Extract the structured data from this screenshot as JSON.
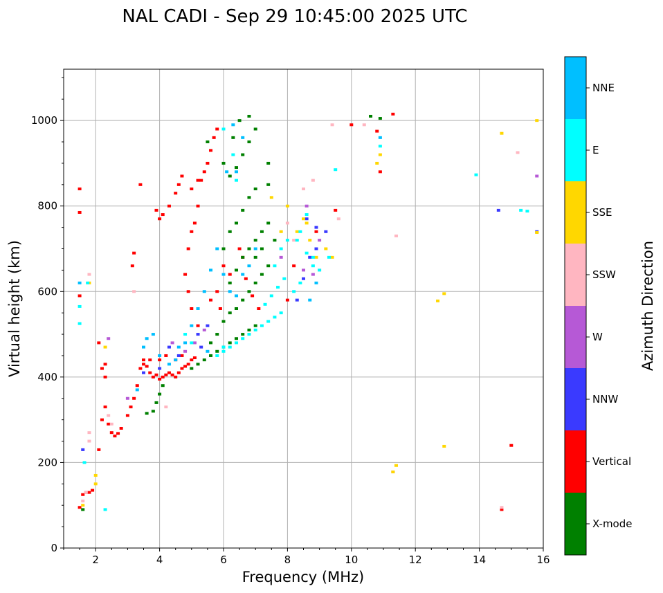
{
  "chart_data": {
    "type": "scatter",
    "title": "NAL CADI - Sep 29 10:45:00 2025 UTC",
    "xlabel": "Frequency (MHz)",
    "ylabel": "Virtual height (km)",
    "xlim": [
      1,
      16
    ],
    "ylim": [
      0,
      1120
    ],
    "xticks": [
      2,
      4,
      6,
      8,
      10,
      12,
      14,
      16
    ],
    "yticks": [
      0,
      200,
      400,
      600,
      800,
      1000
    ],
    "grid": true,
    "colorbar": {
      "label": "Azimuth Direction",
      "categories": [
        {
          "name": "X-mode",
          "color": "#008000"
        },
        {
          "name": "Vertical",
          "color": "#ff0000"
        },
        {
          "name": "NNW",
          "color": "#3a3aff"
        },
        {
          "name": "W",
          "color": "#b659d6"
        },
        {
          "name": "SSW",
          "color": "#ffb6c1"
        },
        {
          "name": "SSE",
          "color": "#ffd700"
        },
        {
          "name": "E",
          "color": "#00ffff"
        },
        {
          "name": "NNE",
          "color": "#00bfff"
        }
      ]
    },
    "series": [
      {
        "name": "Vertical",
        "points": [
          [
            1.5,
            95
          ],
          [
            1.6,
            125
          ],
          [
            1.7,
            130
          ],
          [
            1.8,
            130
          ],
          [
            1.9,
            135
          ],
          [
            2.1,
            230
          ],
          [
            2.2,
            300
          ],
          [
            2.3,
            330
          ],
          [
            2.4,
            290
          ],
          [
            2.5,
            270
          ],
          [
            2.6,
            262
          ],
          [
            2.7,
            268
          ],
          [
            2.8,
            280
          ],
          [
            3.0,
            310
          ],
          [
            3.1,
            330
          ],
          [
            3.2,
            350
          ],
          [
            3.3,
            380
          ],
          [
            3.4,
            420
          ],
          [
            3.5,
            430
          ],
          [
            3.6,
            425
          ],
          [
            3.7,
            410
          ],
          [
            3.8,
            400
          ],
          [
            3.9,
            405
          ],
          [
            4.0,
            395
          ],
          [
            4.1,
            400
          ],
          [
            4.2,
            405
          ],
          [
            4.3,
            410
          ],
          [
            4.4,
            405
          ],
          [
            4.5,
            400
          ],
          [
            4.6,
            410
          ],
          [
            4.7,
            420
          ],
          [
            4.8,
            425
          ],
          [
            4.9,
            430
          ],
          [
            5.0,
            440
          ],
          [
            5.1,
            445
          ],
          [
            3.5,
            440
          ],
          [
            3.7,
            440
          ],
          [
            4.0,
            440
          ],
          [
            4.2,
            450
          ],
          [
            4.5,
            440
          ],
          [
            4.7,
            450
          ],
          [
            5.2,
            520
          ],
          [
            5.0,
            560
          ],
          [
            4.9,
            600
          ],
          [
            4.8,
            640
          ],
          [
            4.9,
            700
          ],
          [
            5.0,
            740
          ],
          [
            5.1,
            760
          ],
          [
            5.2,
            800
          ],
          [
            5.3,
            860
          ],
          [
            5.4,
            880
          ],
          [
            5.5,
            900
          ],
          [
            5.6,
            930
          ],
          [
            5.7,
            960
          ],
          [
            5.8,
            980
          ],
          [
            4.0,
            770
          ],
          [
            4.1,
            780
          ],
          [
            4.3,
            800
          ],
          [
            4.5,
            830
          ],
          [
            4.6,
            850
          ],
          [
            4.7,
            870
          ],
          [
            5.0,
            840
          ],
          [
            5.2,
            860
          ],
          [
            3.4,
            850
          ],
          [
            3.9,
            790
          ],
          [
            3.2,
            690
          ],
          [
            3.15,
            660
          ],
          [
            1.5,
            590
          ],
          [
            1.5,
            840
          ],
          [
            1.5,
            785
          ],
          [
            2.3,
            430
          ],
          [
            2.3,
            400
          ],
          [
            2.2,
            420
          ],
          [
            2.1,
            480
          ],
          [
            6.5,
            700
          ],
          [
            6.6,
            680
          ],
          [
            6.0,
            660
          ],
          [
            6.2,
            640
          ],
          [
            5.8,
            600
          ],
          [
            5.6,
            580
          ],
          [
            5.9,
            560
          ],
          [
            6.7,
            630
          ],
          [
            6.9,
            590
          ],
          [
            7.1,
            560
          ],
          [
            8.0,
            580
          ],
          [
            8.2,
            660
          ],
          [
            8.9,
            740
          ],
          [
            9.5,
            790
          ],
          [
            10.9,
            880
          ],
          [
            10.8,
            975
          ],
          [
            10.0,
            990
          ],
          [
            11.3,
            1015
          ],
          [
            15.0,
            240
          ],
          [
            14.7,
            90
          ]
        ]
      },
      {
        "name": "X-mode",
        "points": [
          [
            1.6,
            90
          ],
          [
            3.6,
            315
          ],
          [
            3.8,
            320
          ],
          [
            3.9,
            340
          ],
          [
            4.0,
            360
          ],
          [
            4.1,
            380
          ],
          [
            5.0,
            420
          ],
          [
            5.2,
            430
          ],
          [
            5.4,
            440
          ],
          [
            5.6,
            450
          ],
          [
            5.8,
            460
          ],
          [
            6.0,
            470
          ],
          [
            6.2,
            480
          ],
          [
            6.4,
            490
          ],
          [
            6.6,
            500
          ],
          [
            6.8,
            510
          ],
          [
            7.0,
            520
          ],
          [
            5.6,
            480
          ],
          [
            5.8,
            500
          ],
          [
            6.0,
            530
          ],
          [
            6.2,
            550
          ],
          [
            6.4,
            560
          ],
          [
            6.6,
            580
          ],
          [
            6.8,
            600
          ],
          [
            7.0,
            620
          ],
          [
            7.2,
            640
          ],
          [
            6.2,
            620
          ],
          [
            6.4,
            650
          ],
          [
            6.6,
            680
          ],
          [
            6.8,
            700
          ],
          [
            7.0,
            720
          ],
          [
            7.2,
            740
          ],
          [
            7.4,
            760
          ],
          [
            6.0,
            700
          ],
          [
            6.2,
            740
          ],
          [
            6.4,
            760
          ],
          [
            6.6,
            790
          ],
          [
            6.8,
            820
          ],
          [
            7.0,
            840
          ],
          [
            7.4,
            850
          ],
          [
            6.2,
            870
          ],
          [
            6.4,
            890
          ],
          [
            6.6,
            920
          ],
          [
            6.8,
            950
          ],
          [
            7.0,
            980
          ],
          [
            7.4,
            900
          ],
          [
            6.5,
            1000
          ],
          [
            6.8,
            1010
          ],
          [
            5.5,
            950
          ],
          [
            6.0,
            900
          ],
          [
            6.3,
            960
          ],
          [
            7.2,
            700
          ],
          [
            7.0,
            680
          ],
          [
            7.4,
            660
          ],
          [
            7.6,
            720
          ],
          [
            10.6,
            1010
          ],
          [
            10.9,
            1005
          ]
        ]
      },
      {
        "name": "NNW",
        "points": [
          [
            1.6,
            230
          ],
          [
            3.5,
            410
          ],
          [
            4.0,
            420
          ],
          [
            4.3,
            470
          ],
          [
            4.6,
            450
          ],
          [
            5.2,
            500
          ],
          [
            5.5,
            520
          ],
          [
            5.3,
            470
          ],
          [
            8.5,
            630
          ],
          [
            8.7,
            680
          ],
          [
            8.9,
            700
          ],
          [
            8.6,
            770
          ],
          [
            8.9,
            750
          ],
          [
            9.2,
            740
          ],
          [
            8.3,
            580
          ],
          [
            14.6,
            790
          ],
          [
            15.8,
            740
          ]
        ]
      },
      {
        "name": "W",
        "points": [
          [
            2.4,
            490
          ],
          [
            3.0,
            350
          ],
          [
            4.4,
            480
          ],
          [
            4.8,
            460
          ],
          [
            5.1,
            480
          ],
          [
            5.4,
            510
          ],
          [
            8.5,
            650
          ],
          [
            8.8,
            640
          ],
          [
            9.0,
            720
          ],
          [
            11.3,
            178
          ],
          [
            15.8,
            870
          ],
          [
            8.6,
            800
          ],
          [
            7.8,
            680
          ]
        ]
      },
      {
        "name": "SSW",
        "points": [
          [
            1.6,
            110
          ],
          [
            1.7,
            130
          ],
          [
            1.8,
            250
          ],
          [
            1.8,
            640
          ],
          [
            1.8,
            270
          ],
          [
            2.4,
            310
          ],
          [
            2.5,
            290
          ],
          [
            3.2,
            600
          ],
          [
            4.2,
            330
          ],
          [
            8.5,
            840
          ],
          [
            8.8,
            860
          ],
          [
            9.0,
            650
          ],
          [
            9.6,
            770
          ],
          [
            10.4,
            990
          ],
          [
            14.7,
            95
          ],
          [
            15.2,
            925
          ],
          [
            8.2,
            720
          ],
          [
            8.0,
            760
          ],
          [
            9.4,
            990
          ],
          [
            11.4,
            730
          ]
        ]
      },
      {
        "name": "SSE",
        "points": [
          [
            1.6,
            100
          ],
          [
            1.8,
            620
          ],
          [
            2.0,
            170
          ],
          [
            2.0,
            150
          ],
          [
            2.3,
            470
          ],
          [
            7.8,
            740
          ],
          [
            8.0,
            800
          ],
          [
            8.3,
            740
          ],
          [
            8.6,
            760
          ],
          [
            8.7,
            720
          ],
          [
            8.9,
            680
          ],
          [
            9.2,
            700
          ],
          [
            10.9,
            920
          ],
          [
            10.8,
            900
          ],
          [
            12.7,
            578
          ],
          [
            12.9,
            595
          ],
          [
            12.9,
            238
          ],
          [
            11.4,
            193
          ],
          [
            11.3,
            178
          ],
          [
            14.7,
            970
          ],
          [
            15.8,
            1000
          ],
          [
            15.8,
            738
          ],
          [
            9.4,
            680
          ],
          [
            8.5,
            770
          ],
          [
            7.5,
            820
          ]
        ]
      },
      {
        "name": "E",
        "points": [
          [
            1.5,
            525
          ],
          [
            1.5,
            565
          ],
          [
            1.75,
            620
          ],
          [
            1.65,
            200
          ],
          [
            2.3,
            90
          ],
          [
            4.8,
            500
          ],
          [
            5.0,
            480
          ],
          [
            5.8,
            450
          ],
          [
            6.0,
            460
          ],
          [
            6.2,
            470
          ],
          [
            6.6,
            490
          ],
          [
            6.8,
            500
          ],
          [
            7.0,
            510
          ],
          [
            7.2,
            520
          ],
          [
            7.4,
            530
          ],
          [
            7.6,
            540
          ],
          [
            7.8,
            550
          ],
          [
            7.3,
            570
          ],
          [
            7.5,
            590
          ],
          [
            7.7,
            610
          ],
          [
            7.9,
            630
          ],
          [
            7.6,
            660
          ],
          [
            7.8,
            700
          ],
          [
            8.0,
            720
          ],
          [
            8.2,
            600
          ],
          [
            8.4,
            620
          ],
          [
            8.6,
            690
          ],
          [
            8.8,
            680
          ],
          [
            8.3,
            720
          ],
          [
            8.4,
            740
          ],
          [
            8.6,
            780
          ],
          [
            8.8,
            660
          ],
          [
            9.0,
            650
          ],
          [
            9.3,
            680
          ],
          [
            9.5,
            885
          ],
          [
            10.9,
            940
          ],
          [
            15.3,
            790
          ],
          [
            15.5,
            788
          ],
          [
            13.9,
            873
          ],
          [
            6.0,
            470
          ],
          [
            6.4,
            480
          ],
          [
            6.0,
            980
          ],
          [
            6.3,
            920
          ],
          [
            6.4,
            860
          ]
        ]
      },
      {
        "name": "NNE",
        "points": [
          [
            1.5,
            620
          ],
          [
            3.3,
            370
          ],
          [
            3.5,
            470
          ],
          [
            3.6,
            490
          ],
          [
            3.8,
            500
          ],
          [
            4.0,
            450
          ],
          [
            4.3,
            430
          ],
          [
            4.5,
            440
          ],
          [
            4.6,
            470
          ],
          [
            4.8,
            480
          ],
          [
            5.0,
            520
          ],
          [
            5.2,
            560
          ],
          [
            5.4,
            600
          ],
          [
            5.6,
            650
          ],
          [
            5.8,
            700
          ],
          [
            6.0,
            640
          ],
          [
            6.2,
            600
          ],
          [
            6.4,
            590
          ],
          [
            6.6,
            640
          ],
          [
            6.8,
            660
          ],
          [
            7.0,
            700
          ],
          [
            6.4,
            880
          ],
          [
            6.6,
            960
          ],
          [
            6.1,
            880
          ],
          [
            5.5,
            460
          ],
          [
            8.9,
            620
          ],
          [
            8.7,
            580
          ],
          [
            10.9,
            960
          ],
          [
            6.3,
            990
          ]
        ]
      }
    ]
  }
}
